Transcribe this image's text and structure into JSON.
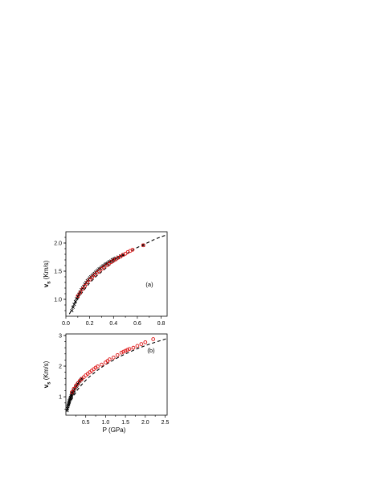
{
  "chart_data": [
    {
      "type": "scatter",
      "panel_label": "(a)",
      "xlabel": "",
      "ylabel": "v_s (Km/s)",
      "ylabel_parts": {
        "symbol": "v",
        "sub": "s",
        "unit": "(Km/s)"
      },
      "xlim": [
        0,
        0.85
      ],
      "ylim": [
        0.7,
        2.2
      ],
      "xticks": [
        0.0,
        0.2,
        0.4,
        0.6,
        0.8
      ],
      "xtick_labels": [
        "0.0",
        "0.2",
        "0.4",
        "0.6",
        "0.8"
      ],
      "yticks": [
        1.0,
        1.5,
        2.0
      ],
      "ytick_labels": [
        "1.0",
        "1.5",
        "2.0"
      ],
      "grid": false,
      "legend": "none",
      "series": [
        {
          "marker": "cross",
          "color": "#000000",
          "x": [
            0.05,
            0.06,
            0.07,
            0.08,
            0.09,
            0.1,
            0.11,
            0.12,
            0.13,
            0.14,
            0.15,
            0.16,
            0.17,
            0.18,
            0.19,
            0.2,
            0.21,
            0.22,
            0.23,
            0.24,
            0.25,
            0.26,
            0.27,
            0.28,
            0.29,
            0.3,
            0.31,
            0.32,
            0.33,
            0.34,
            0.35,
            0.36,
            0.37,
            0.38,
            0.39,
            0.4,
            0.41,
            0.42,
            0.44,
            0.46,
            0.48,
            0.65
          ],
          "y": [
            0.8,
            0.86,
            0.91,
            0.96,
            1.01,
            1.05,
            1.09,
            1.13,
            1.17,
            1.2,
            1.23,
            1.27,
            1.3,
            1.33,
            1.35,
            1.38,
            1.4,
            1.42,
            1.44,
            1.46,
            1.48,
            1.5,
            1.52,
            1.54,
            1.55,
            1.57,
            1.59,
            1.6,
            1.62,
            1.63,
            1.64,
            1.66,
            1.67,
            1.68,
            1.7,
            1.71,
            1.72,
            1.73,
            1.75,
            1.77,
            1.79,
            1.96
          ]
        },
        {
          "marker": "circle",
          "color": "#dd1111",
          "x": [
            0.1,
            0.12,
            0.14,
            0.16,
            0.18,
            0.2,
            0.22,
            0.24,
            0.26,
            0.28,
            0.3,
            0.32,
            0.34,
            0.36,
            0.38,
            0.4,
            0.42,
            0.44,
            0.46,
            0.48,
            0.5,
            0.52,
            0.54,
            0.56,
            0.65
          ],
          "y": [
            1.06,
            1.12,
            1.18,
            1.24,
            1.3,
            1.35,
            1.39,
            1.43,
            1.47,
            1.5,
            1.54,
            1.57,
            1.6,
            1.63,
            1.66,
            1.69,
            1.71,
            1.74,
            1.76,
            1.79,
            1.81,
            1.84,
            1.86,
            1.88,
            1.96
          ]
        }
      ],
      "fit_curve": {
        "style": "dashed",
        "color": "#000000",
        "x": [
          0.03,
          0.06,
          0.1,
          0.15,
          0.2,
          0.25,
          0.3,
          0.35,
          0.4,
          0.45,
          0.5,
          0.55,
          0.6,
          0.65,
          0.7,
          0.75,
          0.8,
          0.84
        ],
        "y": [
          0.74,
          0.87,
          1.01,
          1.16,
          1.29,
          1.4,
          1.49,
          1.58,
          1.66,
          1.73,
          1.8,
          1.86,
          1.92,
          1.97,
          2.02,
          2.07,
          2.11,
          2.14
        ]
      }
    },
    {
      "type": "scatter",
      "panel_label": "(b)",
      "xlabel": "P (GPa)",
      "ylabel": "v_s (Km/s)",
      "ylabel_parts": {
        "symbol": "v",
        "sub": "s",
        "unit": "(Km/s)"
      },
      "xlim": [
        0,
        2.55
      ],
      "ylim": [
        0.4,
        3.05
      ],
      "xticks": [
        0.5,
        1.0,
        1.5,
        2.0,
        2.5
      ],
      "xtick_labels": [
        "0.5",
        "1.0",
        "1.5",
        "2.0",
        "2.5"
      ],
      "yticks": [
        1,
        2,
        3
      ],
      "ytick_labels": [
        "1",
        "2",
        "3"
      ],
      "grid": false,
      "legend": "none",
      "series": [
        {
          "marker": "cross",
          "color": "#000000",
          "x": [
            0.03,
            0.04,
            0.05,
            0.06,
            0.07,
            0.08,
            0.09,
            0.1,
            0.11,
            0.12,
            0.13,
            0.14,
            0.15,
            0.16,
            0.17,
            0.18,
            0.19,
            0.2,
            0.22,
            0.24,
            0.26,
            0.28,
            0.3,
            0.32,
            0.35,
            0.38,
            0.4
          ],
          "y": [
            0.55,
            0.62,
            0.68,
            0.73,
            0.78,
            0.83,
            0.87,
            0.91,
            0.95,
            0.98,
            1.02,
            1.05,
            1.08,
            1.11,
            1.13,
            1.16,
            1.19,
            1.21,
            1.25,
            1.3,
            1.34,
            1.38,
            1.42,
            1.46,
            1.51,
            1.56,
            1.59
          ]
        },
        {
          "marker": "circle",
          "color": "#dd1111",
          "x": [
            0.15,
            0.2,
            0.25,
            0.3,
            0.35,
            0.4,
            0.45,
            0.5,
            0.55,
            0.6,
            0.65,
            0.7,
            0.75,
            0.8,
            0.9,
            1.0,
            1.05,
            1.1,
            1.2,
            1.3,
            1.4,
            1.45,
            1.5,
            1.55,
            1.6,
            1.7,
            1.8,
            1.9,
            2.0,
            2.2
          ],
          "y": [
            1.15,
            1.26,
            1.36,
            1.44,
            1.52,
            1.58,
            1.64,
            1.7,
            1.75,
            1.8,
            1.85,
            1.9,
            1.95,
            1.99,
            2.05,
            2.12,
            2.17,
            2.22,
            2.28,
            2.36,
            2.44,
            2.47,
            2.5,
            2.53,
            2.56,
            2.6,
            2.66,
            2.72,
            2.78,
            2.88
          ]
        }
      ],
      "fit_curve": {
        "style": "dashed",
        "color": "#000000",
        "x": [
          0.03,
          0.06,
          0.1,
          0.15,
          0.2,
          0.3,
          0.4,
          0.5,
          0.6,
          0.8,
          1.0,
          1.2,
          1.4,
          1.6,
          1.8,
          2.0,
          2.2,
          2.4,
          2.52
        ],
        "y": [
          0.55,
          0.66,
          0.78,
          0.92,
          1.04,
          1.24,
          1.4,
          1.54,
          1.66,
          1.87,
          2.05,
          2.2,
          2.34,
          2.46,
          2.57,
          2.67,
          2.76,
          2.84,
          2.89
        ]
      }
    }
  ]
}
